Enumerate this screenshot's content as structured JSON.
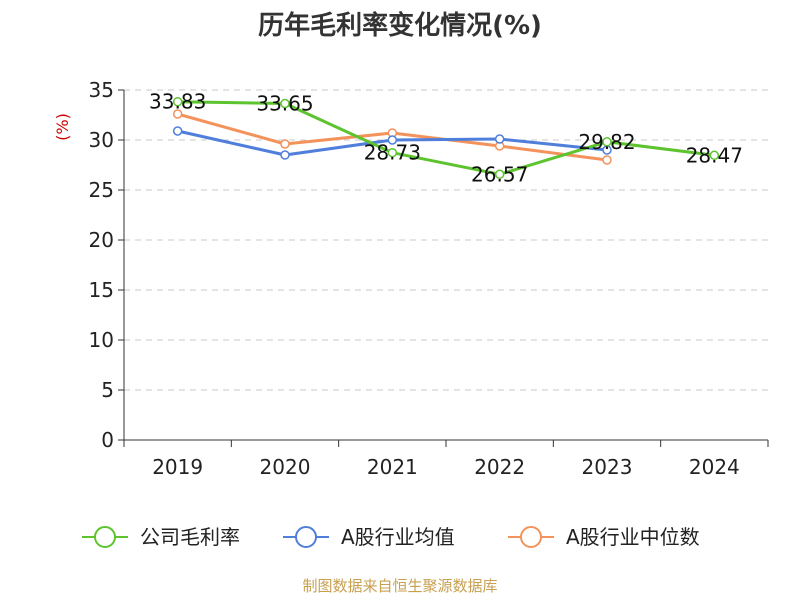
{
  "chart_data": {
    "type": "line",
    "title": "历年毛利率变化情况(%)",
    "ylabel": "(%)",
    "xlabel": "",
    "categories": [
      "2019",
      "2020",
      "2021",
      "2022",
      "2023",
      "2024"
    ],
    "yticks": [
      0,
      5,
      10,
      15,
      20,
      25,
      30,
      35
    ],
    "ylim": [
      0,
      35
    ],
    "grid": true,
    "legend_position": "bottom",
    "series": [
      {
        "name": "公司毛利率",
        "color": "#5dc32e",
        "values": [
          33.83,
          33.65,
          28.73,
          26.57,
          29.82,
          28.47
        ],
        "labels": [
          "33.83",
          "33.65",
          "28.73",
          "26.57",
          "29.82",
          "28.47"
        ]
      },
      {
        "name": "A股行业均值",
        "color": "#4f7fdb",
        "values": [
          30.9,
          28.5,
          30.0,
          30.1,
          29.0,
          null
        ]
      },
      {
        "name": "A股行业中位数",
        "color": "#f4925c",
        "values": [
          32.6,
          29.6,
          30.7,
          29.4,
          28.0,
          null
        ]
      }
    ],
    "source": "制图数据来自恒生聚源数据库"
  }
}
